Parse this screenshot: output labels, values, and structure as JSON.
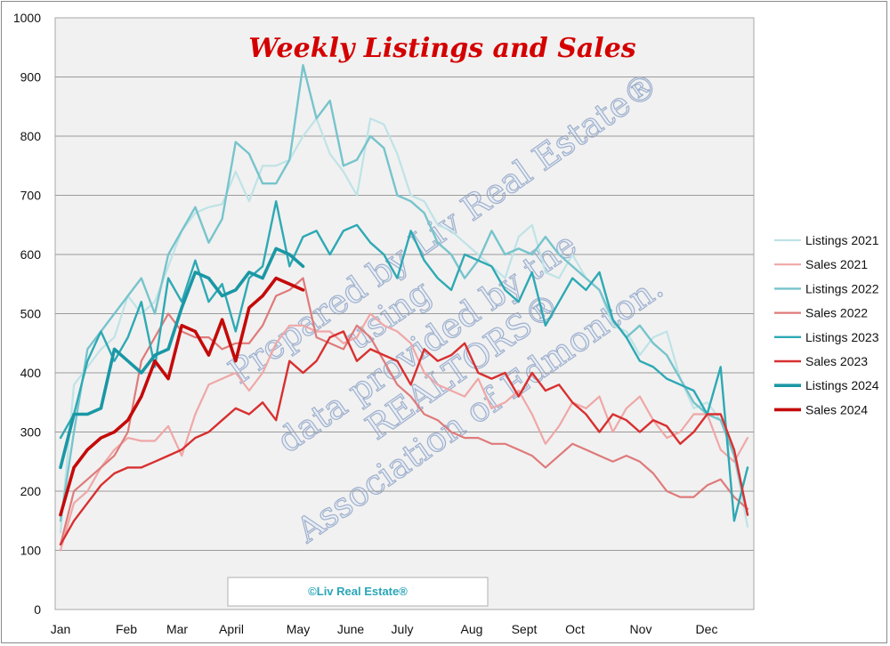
{
  "chart_data": {
    "type": "line",
    "title": "Weekly Listings and Sales",
    "xlabel": "",
    "ylabel": "",
    "ylim": [
      0,
      1000
    ],
    "yticks": [
      0,
      100,
      200,
      300,
      400,
      500,
      600,
      700,
      800,
      900,
      1000
    ],
    "weeks": 52,
    "x_tick_labels": [
      "Jan",
      "Feb",
      "Mar",
      "April",
      "May",
      "June",
      "July",
      "Aug",
      "Sept",
      "Oct",
      "Nov",
      "Dec"
    ],
    "grid": "horizontal",
    "legend_position": "right",
    "watermark": [
      "Prepared by Liv Real Estate®",
      "using",
      "data provided by the",
      "REALTORS®",
      "Association of Edmonton."
    ],
    "copyright": "©Liv Real Estate®",
    "series": [
      {
        "name": "Listings 2021",
        "color": "#bfe3e6",
        "width": 2.2,
        "values": [
          130,
          380,
          410,
          440,
          460,
          530,
          500,
          520,
          580,
          640,
          670,
          680,
          685,
          740,
          690,
          750,
          750,
          760,
          800,
          830,
          770,
          740,
          700,
          830,
          820,
          770,
          700,
          690,
          650,
          640,
          620,
          600,
          580,
          560,
          630,
          650,
          570,
          560,
          600,
          560,
          540,
          480,
          470,
          430,
          460,
          470,
          390,
          340,
          350,
          320,
          260,
          140
        ]
      },
      {
        "name": "Sales 2021",
        "color": "#f0a7a7",
        "width": 2.2,
        "values": [
          100,
          180,
          200,
          240,
          270,
          290,
          285,
          285,
          310,
          260,
          330,
          380,
          390,
          400,
          370,
          400,
          450,
          480,
          480,
          470,
          470,
          450,
          460,
          500,
          480,
          470,
          450,
          400,
          380,
          370,
          360,
          390,
          340,
          350,
          370,
          330,
          280,
          310,
          350,
          340,
          360,
          300,
          340,
          360,
          320,
          290,
          300,
          330,
          330,
          270,
          250,
          290
        ]
      },
      {
        "name": "Listings 2022",
        "color": "#77c4cc",
        "width": 2.4,
        "values": [
          150,
          300,
          440,
          470,
          500,
          530,
          560,
          500,
          600,
          640,
          680,
          620,
          660,
          790,
          770,
          720,
          720,
          760,
          920,
          830,
          860,
          750,
          760,
          800,
          780,
          700,
          690,
          670,
          620,
          600,
          560,
          590,
          640,
          600,
          610,
          600,
          630,
          600,
          580,
          560,
          540,
          490,
          460,
          480,
          450,
          430,
          390,
          350,
          330,
          320,
          260,
          160
        ]
      },
      {
        "name": "Sales 2022",
        "color": "#df7a7a",
        "width": 2.2,
        "values": [
          110,
          200,
          220,
          240,
          260,
          300,
          420,
          460,
          500,
          470,
          460,
          460,
          440,
          450,
          450,
          480,
          530,
          540,
          560,
          460,
          450,
          440,
          480,
          460,
          420,
          380,
          360,
          330,
          320,
          300,
          290,
          290,
          280,
          280,
          270,
          260,
          240,
          260,
          280,
          270,
          260,
          250,
          260,
          250,
          230,
          200,
          190,
          190,
          210,
          220,
          190,
          170
        ]
      },
      {
        "name": "Listings 2023",
        "color": "#2ea9b4",
        "width": 2.4,
        "values": [
          290,
          330,
          420,
          470,
          420,
          460,
          520,
          410,
          560,
          520,
          590,
          520,
          550,
          470,
          560,
          580,
          690,
          580,
          630,
          640,
          600,
          640,
          650,
          620,
          600,
          560,
          640,
          590,
          560,
          540,
          600,
          590,
          580,
          540,
          520,
          570,
          480,
          520,
          560,
          540,
          570,
          490,
          460,
          420,
          410,
          390,
          380,
          370,
          330,
          410,
          150,
          240
        ]
      },
      {
        "name": "Sales 2023",
        "color": "#d83030",
        "width": 2.4,
        "values": [
          110,
          150,
          180,
          210,
          230,
          240,
          240,
          250,
          260,
          270,
          290,
          300,
          320,
          340,
          330,
          350,
          320,
          420,
          400,
          420,
          460,
          470,
          420,
          440,
          430,
          420,
          380,
          440,
          420,
          430,
          450,
          400,
          390,
          400,
          360,
          400,
          370,
          380,
          350,
          330,
          300,
          330,
          320,
          300,
          320,
          310,
          280,
          300,
          330,
          330,
          270,
          160
        ]
      },
      {
        "name": "Listings 2024",
        "color": "#1a97a5",
        "width": 3.6,
        "values": [
          240,
          330,
          330,
          340,
          440,
          420,
          400,
          430,
          440,
          510,
          570,
          560,
          530,
          540,
          570,
          560,
          610,
          600,
          580
        ]
      },
      {
        "name": "Sales 2024",
        "color": "#c40a0a",
        "width": 3.6,
        "values": [
          160,
          240,
          270,
          290,
          300,
          320,
          360,
          420,
          390,
          480,
          470,
          430,
          490,
          420,
          510,
          530,
          560,
          550,
          540
        ]
      }
    ]
  }
}
